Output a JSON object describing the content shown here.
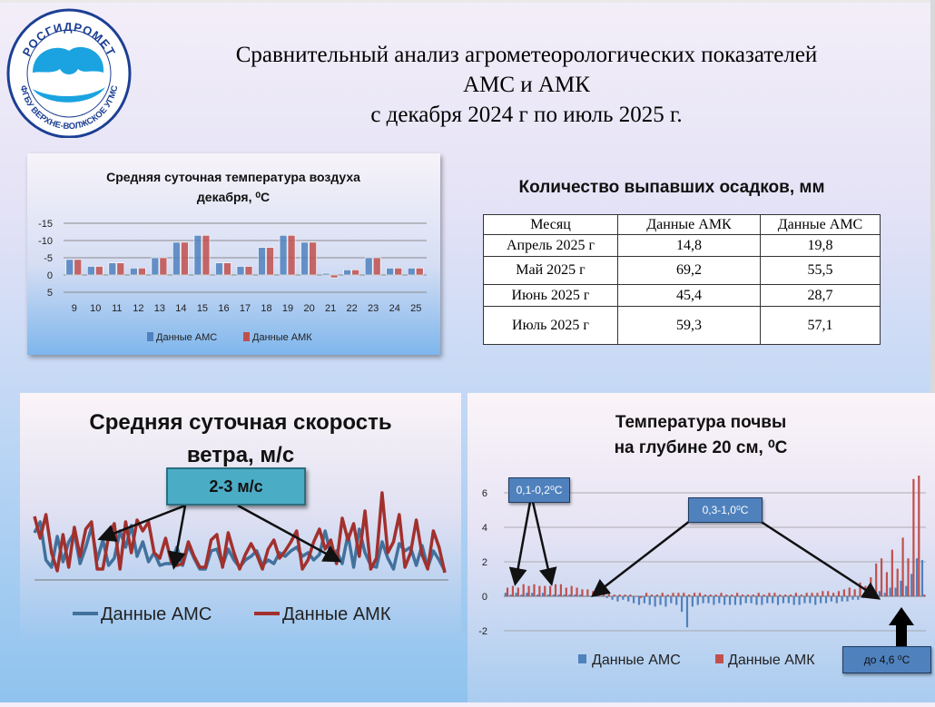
{
  "header": {
    "logo_top": "РОСГИДРОМЕТ",
    "logo_bottom": "ФГБУ ВЕРХНЕ-ВОЛЖСКОЕ УГМС",
    "title_lines": [
      "Сравнительный анализ агрометеорологических показателей",
      "АМС и АМК",
      "с декабря 2024 г по июль 2025 г."
    ]
  },
  "colors": {
    "ams": "#4f81bd",
    "amk": "#c0504d",
    "wind_ams": "#41719c",
    "wind_amk": "#a2302d"
  },
  "chart_data": [
    {
      "id": "air-temp",
      "type": "bar",
      "title_lines": [
        "Средняя суточная температура воздуха",
        "декабря, ⁰С"
      ],
      "categories": [
        "9",
        "10",
        "11",
        "12",
        "13",
        "14",
        "15",
        "16",
        "17",
        "18",
        "19",
        "20",
        "21",
        "22",
        "23",
        "24",
        "25"
      ],
      "ylim": [
        -15,
        5
      ],
      "y_inverted": true,
      "y_ticks": [
        "-15",
        "-10",
        "-5",
        "0",
        "5"
      ],
      "series": [
        {
          "name": "Данные АМС",
          "values": [
            -4.5,
            -2.5,
            -3.5,
            -2,
            -5,
            -9.5,
            -11.5,
            -3.5,
            -2.5,
            -8,
            -11.5,
            -9.5,
            -0.5,
            -1.5,
            -5,
            -2,
            -2
          ]
        },
        {
          "name": "Данные АМК",
          "values": [
            -4.5,
            -2.5,
            -3.5,
            -2,
            -5,
            -9.5,
            -11.5,
            -3.5,
            -2.5,
            -8,
            -11.5,
            -9.5,
            0.8,
            -1.5,
            -5,
            -2,
            -2
          ]
        }
      ],
      "legend": "bottom"
    },
    {
      "id": "wind",
      "type": "line",
      "title_lines": [
        "Средняя суточная скорость",
        "ветра, м/с"
      ],
      "annotation": "2-3 м/с",
      "series": [
        {
          "name": "Данные АМС",
          "values": [
            2.6,
            3.2,
            1.1,
            0.7,
            2.4,
            1,
            2.1,
            2.6,
            0.9,
            1.8,
            2.9,
            1.1,
            2.2,
            0.8,
            1.2,
            2.7,
            1.8,
            3,
            1.3,
            2.1,
            1,
            1.5,
            0.8,
            0.9,
            0.9,
            1.8,
            0.8,
            1.9,
            1.2,
            0.6,
            0.6,
            1.6,
            1.7,
            0.8,
            1.7,
            1.1,
            0.7,
            1.1,
            1.3,
            1.6,
            0.8,
            1.1,
            0.9,
            1.5,
            1.3,
            1.6,
            1.8,
            1.3,
            1.5,
            1.1,
            1.4,
            2.7,
            1.4,
            1.6,
            0.9,
            2.5,
            0.7,
            2.8,
            1.5,
            0.8,
            0.7,
            2.1,
            1.2,
            0.6,
            2,
            1.6,
            1.8,
            0.8,
            1.9,
            0.7,
            1.6,
            1.1,
            0.5
          ]
        },
        {
          "name": "Данные АМК",
          "values": [
            3.5,
            2.3,
            3.6,
            1.5,
            0.5,
            2.5,
            0.7,
            2.9,
            1.3,
            2.8,
            3.2,
            0.6,
            0.6,
            2.4,
            3.1,
            0.6,
            3.2,
            1.5,
            3.3,
            2.7,
            3.2,
            1.5,
            1.2,
            2.3,
            1,
            0.8,
            0.9,
            2.1,
            1.3,
            0.7,
            0.7,
            2.2,
            2.5,
            0.7,
            2.6,
            1.5,
            0.6,
            1.4,
            2,
            1.4,
            0.6,
            1.7,
            2.2,
            1.2,
            1.6,
            2.1,
            2.7,
            0.6,
            1.1,
            2.1,
            2.8,
            1.7,
            2.2,
            0.9,
            3.4,
            2.2,
            3.1,
            1.3,
            3.8,
            0.6,
            1.2,
            4.8,
            1.5,
            2.1,
            3.6,
            0.7,
            1.5,
            3.3,
            1.4,
            0.6,
            2.7,
            1.8,
            0.4
          ]
        }
      ],
      "legend": "bottom"
    },
    {
      "id": "soil",
      "type": "bar",
      "title_lines": [
        "Температура почвы",
        "на глубине 20 см, ⁰С"
      ],
      "ylim": [
        -2,
        6
      ],
      "y_ticks": [
        "6",
        "4",
        "2",
        "0",
        "-2"
      ],
      "series": [
        {
          "name": "Данные АМС",
          "values": [
            0.2,
            0.1,
            0.2,
            0.1,
            0.2,
            0.2,
            0.1,
            0.2,
            0.1,
            0.1,
            0.1,
            0.1,
            0.1,
            0.1,
            0.1,
            0,
            0,
            0,
            0,
            -0.1,
            -0.2,
            -0.3,
            -0.2,
            -0.3,
            -0.4,
            -0.5,
            -0.4,
            -0.5,
            -0.6,
            -0.5,
            -0.6,
            -0.4,
            -0.5,
            -0.9,
            -1.8,
            -0.6,
            -0.5,
            -0.4,
            -0.4,
            -0.5,
            -0.4,
            -0.5,
            -0.5,
            -0.5,
            -0.5,
            -0.4,
            -0.4,
            -0.5,
            -0.5,
            -0.4,
            -0.4,
            -0.5,
            -0.4,
            -0.4,
            -0.5,
            -0.5,
            -0.4,
            -0.4,
            -0.5,
            -0.4,
            -0.4,
            -0.3,
            -0.4,
            -0.3,
            -0.3,
            -0.2,
            -0.2,
            -0.1,
            -0.1,
            0.1,
            0.3,
            0.2,
            0.5,
            0.5,
            0.9,
            0.6,
            1.3,
            2.2,
            2.1
          ]
        },
        {
          "name": "Данные АМК",
          "values": [
            0.5,
            0.6,
            0.5,
            0.7,
            0.6,
            0.7,
            0.6,
            0.6,
            0.6,
            0.7,
            0.7,
            0.5,
            0.6,
            0.5,
            0.4,
            0.4,
            0.3,
            0.3,
            0.2,
            0.2,
            0.1,
            0.1,
            0.1,
            0.1,
            0,
            -0.1,
            0.2,
            0.1,
            0.1,
            0.2,
            0.1,
            0.2,
            0.2,
            0.2,
            0.1,
            0.2,
            0.2,
            0.1,
            0.1,
            0.1,
            0.2,
            0.1,
            0.1,
            0.2,
            0.1,
            0.1,
            0.1,
            0.2,
            0.1,
            0.2,
            0.2,
            0.1,
            0.1,
            0.1,
            0.2,
            0.1,
            0.2,
            0.2,
            0.2,
            0.3,
            0.3,
            0.2,
            0.3,
            0.4,
            0.5,
            0.4,
            0.8,
            0.6,
            1.1,
            1.9,
            2.2,
            1.4,
            2.7,
            1.6,
            3.4,
            2.2,
            6.8,
            7.0,
            0.1
          ]
        }
      ],
      "annotations": [
        "0,1-0,2⁰С",
        "0,3-1,0⁰С",
        "до 4,6 ⁰С"
      ],
      "legend": "bottom"
    }
  ],
  "precip": {
    "title": "Количество выпавших осадков, мм",
    "headers": [
      "Месяц",
      "Данные АМК",
      "Данные АМС"
    ],
    "rows": [
      [
        "Апрель 2025 г",
        "14,8",
        "19,8"
      ],
      [
        "Май 2025 г",
        "69,2",
        "55,5"
      ],
      [
        "Июнь 2025 г",
        "45,4",
        "28,7"
      ],
      [
        "Июль 2025 г",
        "59,3",
        "57,1"
      ]
    ]
  }
}
